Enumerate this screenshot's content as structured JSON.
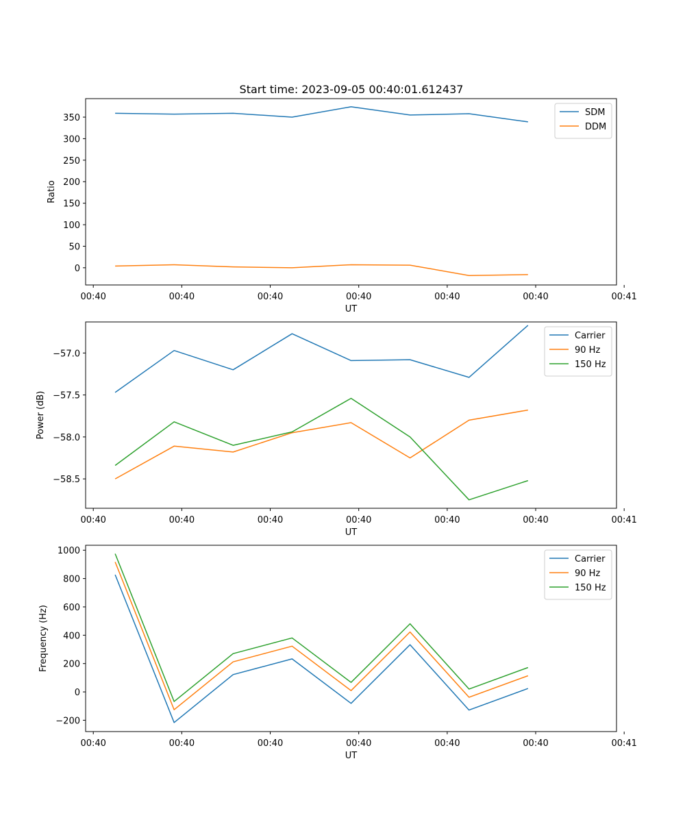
{
  "title": "Start time: 2023-09-05 00:40:01.612437",
  "chart_data": [
    {
      "type": "line",
      "title": "Start time: 2023-09-05 00:40:01.612437",
      "xlabel": "UT",
      "ylabel": "Ratio",
      "x": [
        0,
        1,
        2,
        3,
        4,
        5,
        6,
        7
      ],
      "xlim": [
        -0.5,
        8.5
      ],
      "xticks": [
        -0.37,
        1.13,
        2.63,
        4.13,
        5.63,
        7.13,
        8.63
      ],
      "xtick_labels": [
        "00:40",
        "00:40",
        "00:40",
        "00:40",
        "00:40",
        "00:40",
        "00:41"
      ],
      "ylim": [
        -40,
        393
      ],
      "yticks": [
        0,
        50,
        100,
        150,
        200,
        250,
        300,
        350
      ],
      "ytick_labels": [
        "0",
        "50",
        "100",
        "150",
        "200",
        "250",
        "300",
        "350"
      ],
      "legend_position": "top-right",
      "series": [
        {
          "name": "SDM",
          "color": "#1f77b4",
          "values": [
            359,
            357,
            359,
            350,
            374,
            355,
            358,
            339
          ]
        },
        {
          "name": "DDM",
          "color": "#ff7f0e",
          "values": [
            4,
            7,
            2,
            0,
            7,
            6,
            -18,
            -16
          ]
        }
      ]
    },
    {
      "type": "line",
      "title": "",
      "xlabel": "UT",
      "ylabel": "Power (dB)",
      "x": [
        0,
        1,
        2,
        3,
        4,
        5,
        6,
        7
      ],
      "xlim": [
        -0.5,
        8.5
      ],
      "xticks": [
        -0.37,
        1.13,
        2.63,
        4.13,
        5.63,
        7.13,
        8.63
      ],
      "xtick_labels": [
        "00:40",
        "00:40",
        "00:40",
        "00:40",
        "00:40",
        "00:40",
        "00:41"
      ],
      "ylim": [
        -58.85,
        -56.63
      ],
      "yticks": [
        -58.5,
        -58.0,
        -57.5,
        -57.0
      ],
      "ytick_labels": [
        "−58.5",
        "−58.0",
        "−57.5",
        "−57.0"
      ],
      "legend_position": "top-right",
      "series": [
        {
          "name": "Carrier",
          "color": "#1f77b4",
          "values": [
            -57.47,
            -56.97,
            -57.2,
            -56.77,
            -57.09,
            -57.08,
            -57.29,
            -56.67
          ]
        },
        {
          "name": "90 Hz",
          "color": "#ff7f0e",
          "values": [
            -58.5,
            -58.11,
            -58.18,
            -57.95,
            -57.83,
            -58.25,
            -57.8,
            -57.68
          ]
        },
        {
          "name": "150 Hz",
          "color": "#2ca02c",
          "values": [
            -58.34,
            -57.82,
            -58.1,
            -57.94,
            -57.54,
            -58.0,
            -58.75,
            -58.52
          ]
        }
      ]
    },
    {
      "type": "line",
      "title": "",
      "xlabel": "UT",
      "ylabel": "Frequency (Hz)",
      "x": [
        0,
        1,
        2,
        3,
        4,
        5,
        6,
        7
      ],
      "xlim": [
        -0.5,
        8.5
      ],
      "xticks": [
        -0.37,
        1.13,
        2.63,
        4.13,
        5.63,
        7.13,
        8.63
      ],
      "xtick_labels": [
        "00:40",
        "00:40",
        "00:40",
        "00:40",
        "00:40",
        "00:40",
        "00:41"
      ],
      "ylim": [
        -280,
        1035
      ],
      "yticks": [
        -200,
        0,
        200,
        400,
        600,
        800,
        1000
      ],
      "ytick_labels": [
        "−200",
        "0",
        "200",
        "400",
        "600",
        "800",
        "1000"
      ],
      "legend_position": "top-right",
      "series": [
        {
          "name": "Carrier",
          "color": "#1f77b4",
          "values": [
            827,
            -216,
            122,
            233,
            -81,
            333,
            -128,
            24
          ]
        },
        {
          "name": "90 Hz",
          "color": "#ff7f0e",
          "values": [
            917,
            -126,
            212,
            323,
            9,
            423,
            -38,
            114
          ]
        },
        {
          "name": "150 Hz",
          "color": "#2ca02c",
          "values": [
            975,
            -68,
            270,
            381,
            67,
            481,
            20,
            172
          ]
        }
      ]
    }
  ]
}
